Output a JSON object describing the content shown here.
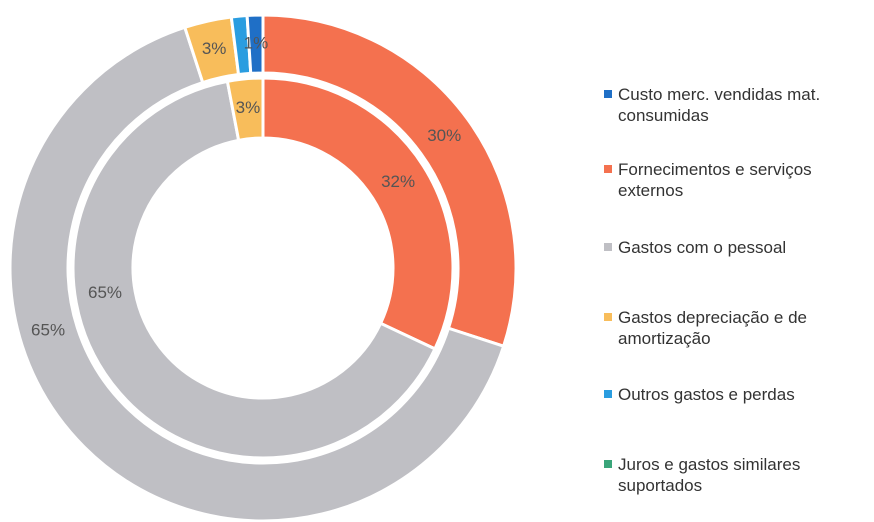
{
  "chart_data": {
    "type": "doughnut",
    "categories": [
      "Custo merc. vendidas mat. consumidas",
      "Fornecimentos e serviços externos",
      "Gastos com o pessoal",
      "Gastos depreciação e de amortização",
      "Outros gastos e perdas",
      "Juros e gastos similares suportados"
    ],
    "colors": [
      "#1f6fc6",
      "#f4714f",
      "#bfbfc4",
      "#f8bd5b",
      "#2a9de0",
      "#3aa57a"
    ],
    "series": [
      {
        "values": [
          1,
          30,
          65,
          3,
          1,
          0
        ],
        "value_labels": [
          "1%",
          "30%",
          "65%",
          "3%",
          null,
          null
        ]
      },
      {
        "values": [
          0,
          32,
          65,
          3,
          0,
          0
        ],
        "value_labels": [
          null,
          "32%",
          "65%",
          "3%",
          null,
          null
        ]
      }
    ]
  }
}
